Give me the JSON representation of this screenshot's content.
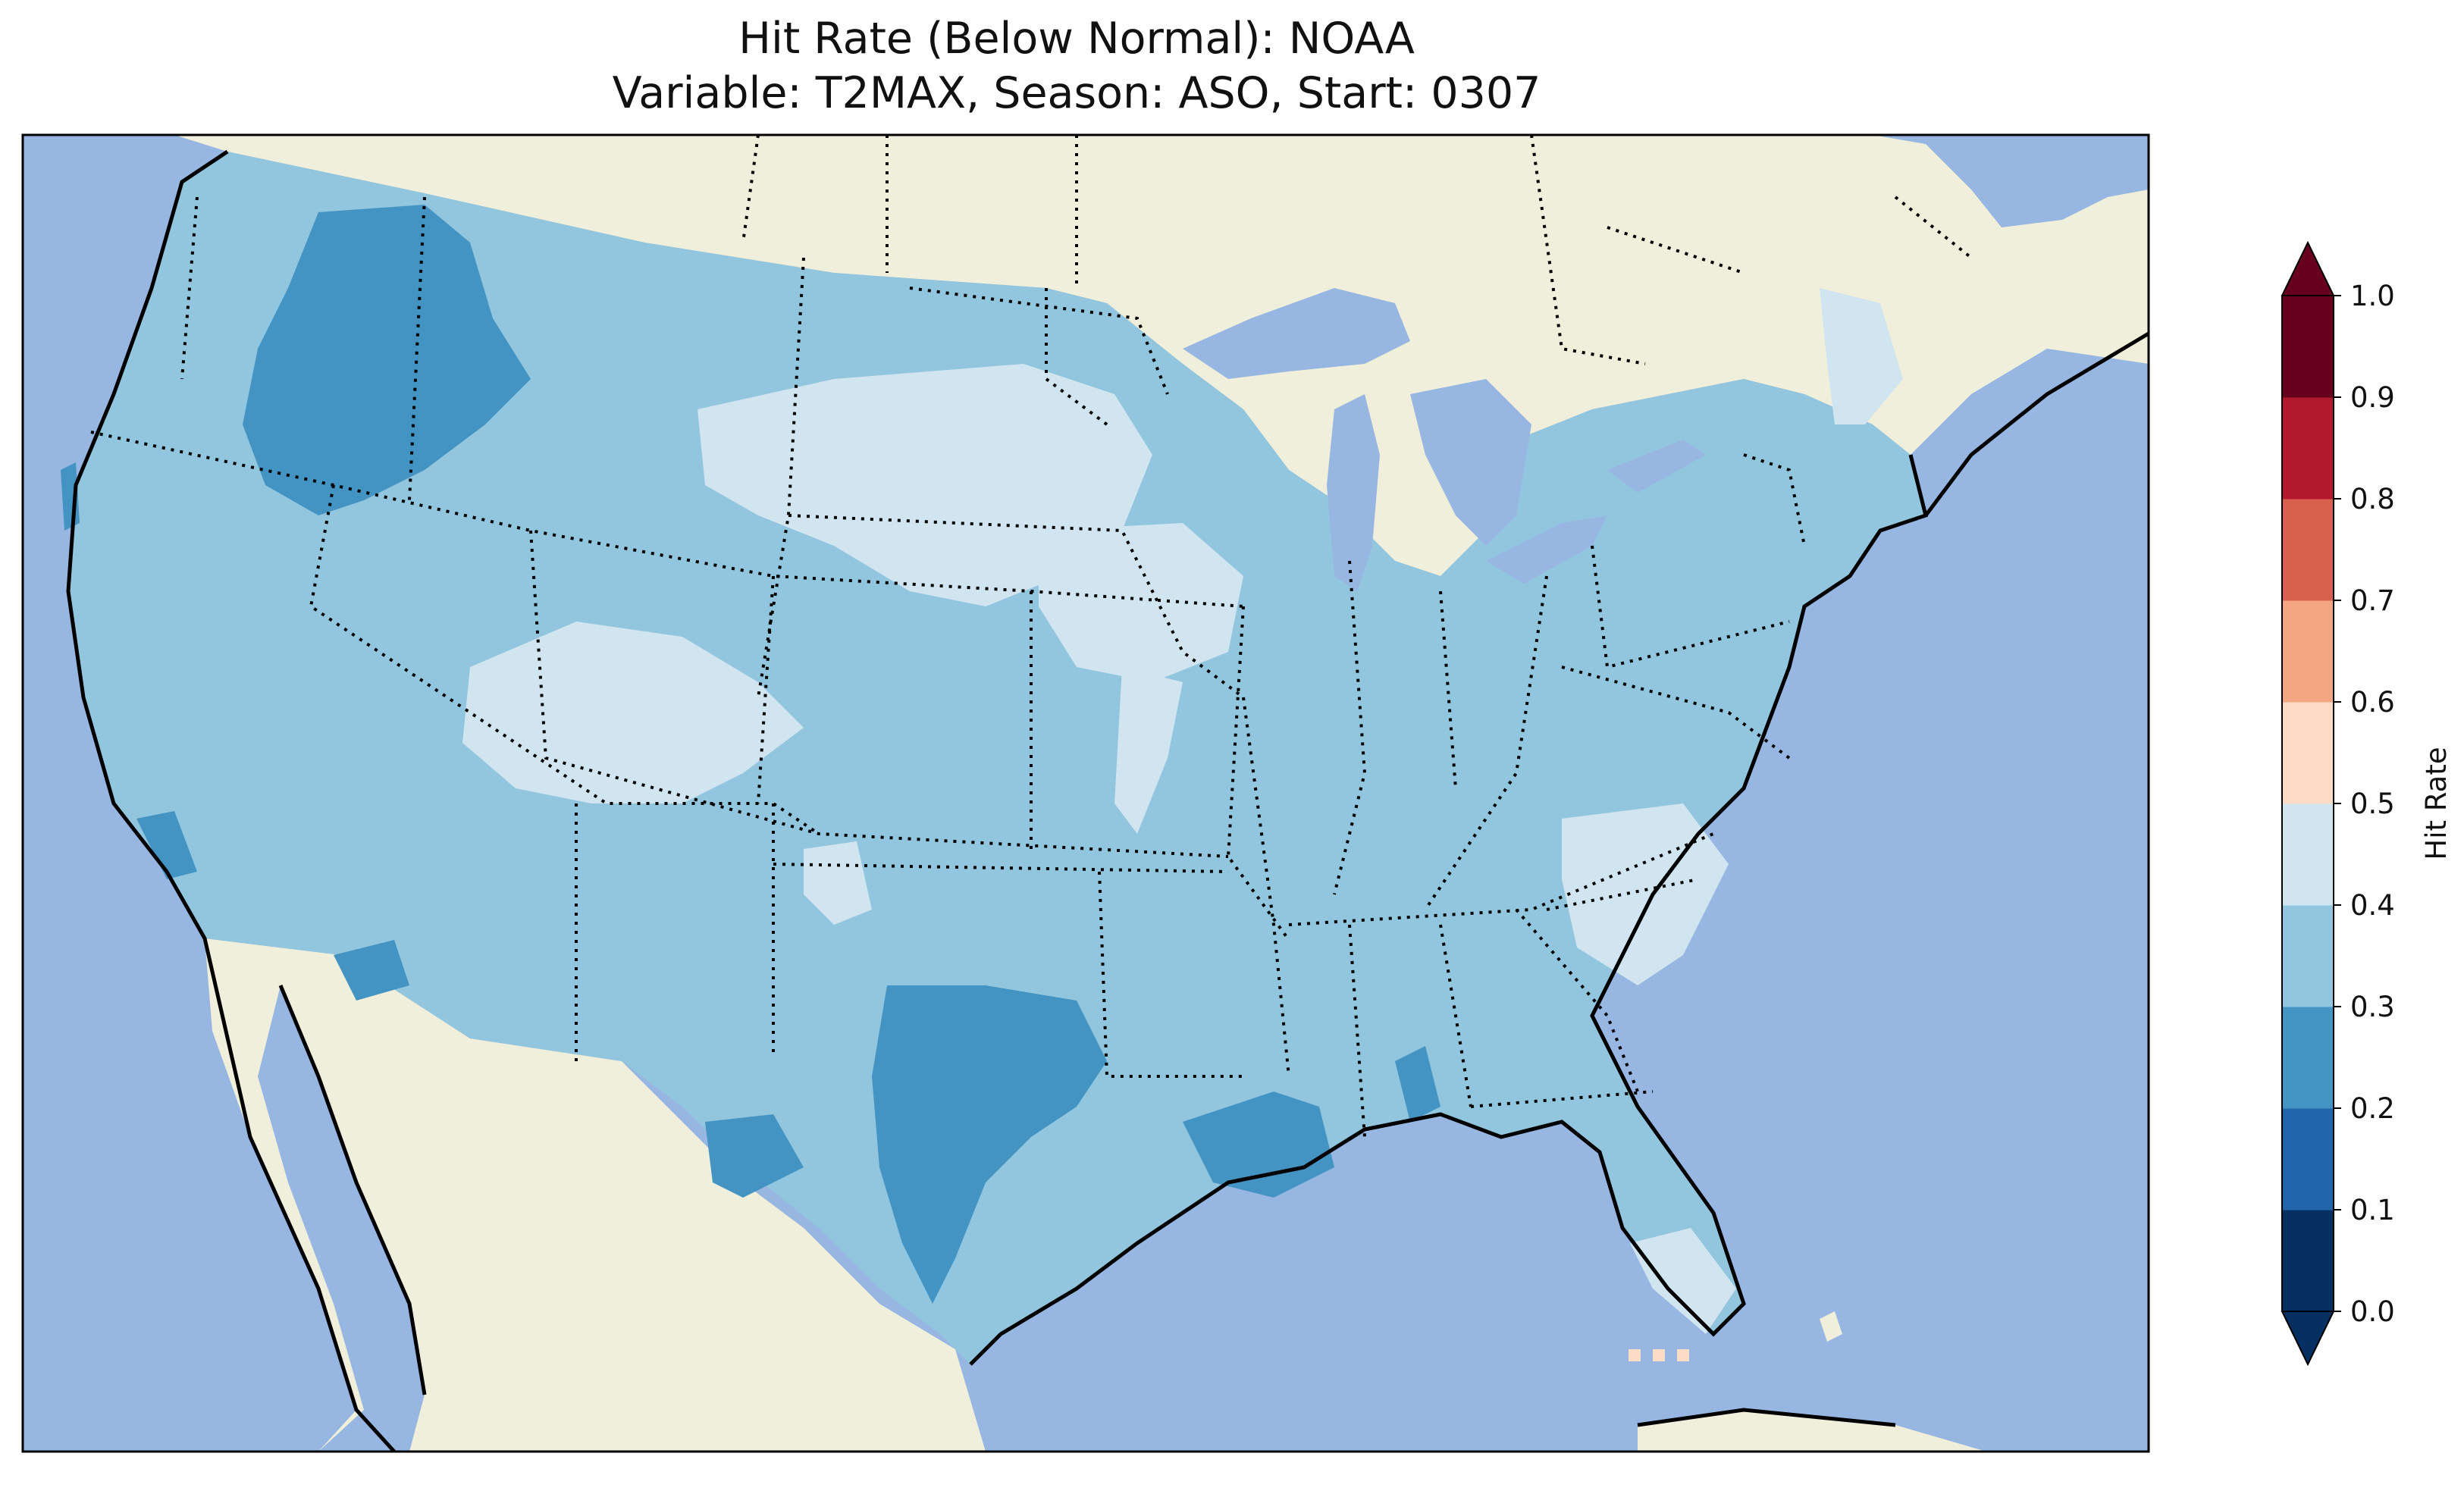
{
  "title": {
    "line1": "Hit Rate (Below Normal): NOAA",
    "line2": "Variable: T2MAX, Season: ASO, Start: 0307"
  },
  "colors": {
    "ocean": "#97b6e1",
    "land": "#efefdb",
    "lake": "#97b6e1",
    "border": "#000000"
  },
  "colorbar": {
    "label": "Hit Rate",
    "ticks": [
      "0.0",
      "0.1",
      "0.2",
      "0.3",
      "0.4",
      "0.5",
      "0.6",
      "0.7",
      "0.8",
      "0.9",
      "1.0"
    ],
    "bins": [
      {
        "range": [
          0.0,
          0.1
        ],
        "color": "#053061"
      },
      {
        "range": [
          0.1,
          0.2
        ],
        "color": "#2166ac"
      },
      {
        "range": [
          0.2,
          0.3
        ],
        "color": "#4393c3"
      },
      {
        "range": [
          0.3,
          0.4
        ],
        "color": "#92c5de"
      },
      {
        "range": [
          0.4,
          0.5
        ],
        "color": "#d1e5f0"
      },
      {
        "range": [
          0.5,
          0.6
        ],
        "color": "#fddbc7"
      },
      {
        "range": [
          0.6,
          0.7
        ],
        "color": "#f4a582"
      },
      {
        "range": [
          0.7,
          0.8
        ],
        "color": "#d6604d"
      },
      {
        "range": [
          0.8,
          0.9
        ],
        "color": "#b2182b"
      },
      {
        "range": [
          0.9,
          1.0
        ],
        "color": "#67001f"
      }
    ],
    "extend": "both"
  },
  "map_fields": {
    "dominant_bin": "0.3–0.4",
    "regions": [
      {
        "name": "Idaho / Oregon high terrain",
        "bin": "0.2–0.3"
      },
      {
        "name": "Central Texas",
        "bin": "0.2–0.3"
      },
      {
        "name": "Louisiana coast",
        "bin": "0.2–0.3"
      },
      {
        "name": "Southern California coast",
        "bin": "0.2–0.3"
      },
      {
        "name": "Northern Plains",
        "bin": "0.4–0.5"
      },
      {
        "name": "Iowa / Missouri",
        "bin": "0.4–0.5"
      },
      {
        "name": "Colorado / Utah",
        "bin": "0.4–0.5"
      },
      {
        "name": "Carolinas",
        "bin": "0.4–0.5"
      },
      {
        "name": "Southern Florida",
        "bin": "0.4–0.5"
      },
      {
        "name": "Northern New England",
        "bin": "0.4–0.5"
      }
    ]
  }
}
